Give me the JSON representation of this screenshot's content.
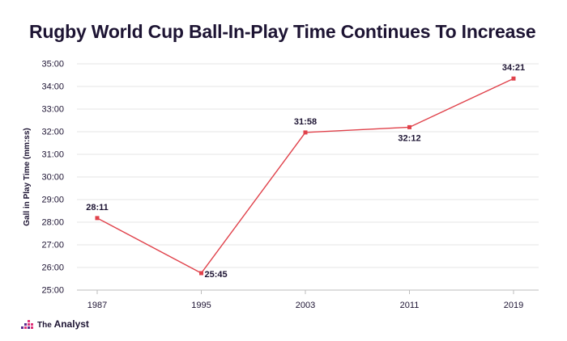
{
  "title": "Rugby World Cup Ball-In-Play Time Continues To Increase",
  "brand": {
    "prefix": "The",
    "name": "Analyst",
    "icon": "analyst-logo-icon"
  },
  "colors": {
    "line": "#e0424b",
    "text": "#1d1433",
    "grid": "#e6e6e6",
    "logo_pink": "#e0337a",
    "logo_purple": "#5a2a8c"
  },
  "chart_data": {
    "type": "line",
    "title": "Rugby World Cup Ball-In-Play Time Continues To Increase",
    "ylabel": "Gall in Play Time (mm:ss)",
    "xlabel": "",
    "categories": [
      "1987",
      "1995",
      "2003",
      "2011",
      "2019"
    ],
    "values_minutes": [
      28.1833,
      25.75,
      31.9667,
      32.2,
      34.35
    ],
    "data_labels": [
      "28:11",
      "25:45",
      "31:58",
      "32:12",
      "34:21"
    ],
    "label_positions": [
      "above",
      "right",
      "above",
      "below",
      "above"
    ],
    "ylim": [
      25,
      35
    ],
    "yticks": [
      25,
      26,
      27,
      28,
      29,
      30,
      31,
      32,
      33,
      34,
      35
    ],
    "ytick_labels": [
      "25:00",
      "26:00",
      "27:00",
      "28:00",
      "29:00",
      "30:00",
      "31:00",
      "32:00",
      "33:00",
      "34:00",
      "35:00"
    ],
    "grid": true,
    "legend": "none"
  }
}
